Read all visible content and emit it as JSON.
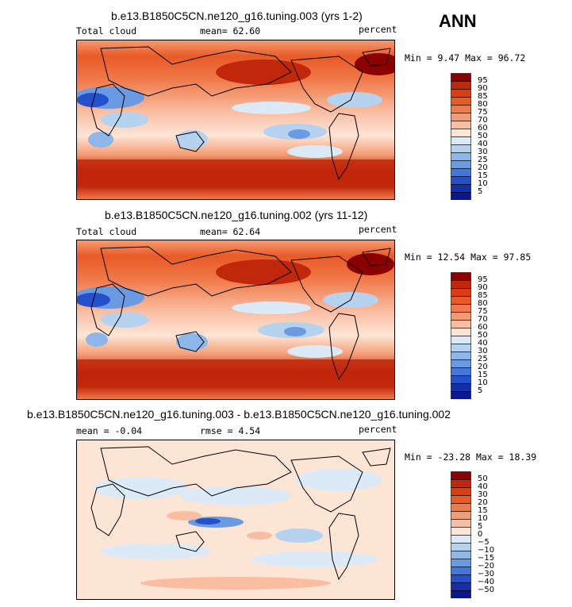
{
  "season_label": "ANN",
  "panels": [
    {
      "title": "b.e13.B1850C5CN.ne120_g16.tuning.003 (yrs 1-2)",
      "variable": "Total cloud",
      "stat1": "mean=  62.60",
      "stat2": "",
      "units": "percent",
      "minmax": "Min =   9.47 Max =  96.72",
      "colorbar": {
        "labels": [
          "95",
          "90",
          "85",
          "80",
          "75",
          "70",
          "60",
          "50",
          "40",
          "30",
          "25",
          "20",
          "15",
          "10",
          "5"
        ],
        "colors": [
          "#8b0000",
          "#c1270b",
          "#db3d10",
          "#e85a26",
          "#f07a4a",
          "#f59b73",
          "#f9bea2",
          "#fde5d6",
          "#dce9f7",
          "#b5d2ef",
          "#8db7e8",
          "#6a9be2",
          "#4576d9",
          "#2550cc",
          "#1430a8",
          "#0a1890"
        ]
      },
      "chart_data": {
        "type": "heatmap",
        "title": "b.e13.B1850C5CN.ne120_g16.tuning.003 (yrs 1-2)",
        "variable": "Total cloud",
        "units": "percent",
        "mean": 62.6,
        "min": 9.47,
        "max": 96.72,
        "levels": [
          5,
          10,
          15,
          20,
          25,
          30,
          40,
          50,
          60,
          70,
          75,
          80,
          85,
          90,
          95
        ]
      }
    },
    {
      "title": "b.e13.B1850C5CN.ne120_g16.tuning.002 (yrs 11-12)",
      "variable": "Total cloud",
      "stat1": "mean=  62.64",
      "stat2": "",
      "units": "percent",
      "minmax": "Min =  12.54 Max =  97.85",
      "colorbar": {
        "labels": [
          "95",
          "90",
          "85",
          "80",
          "75",
          "70",
          "60",
          "50",
          "40",
          "30",
          "25",
          "20",
          "15",
          "10",
          "5"
        ],
        "colors": [
          "#8b0000",
          "#c1270b",
          "#db3d10",
          "#e85a26",
          "#f07a4a",
          "#f59b73",
          "#f9bea2",
          "#fde5d6",
          "#dce9f7",
          "#b5d2ef",
          "#8db7e8",
          "#6a9be2",
          "#4576d9",
          "#2550cc",
          "#1430a8",
          "#0a1890"
        ]
      },
      "chart_data": {
        "type": "heatmap",
        "title": "b.e13.B1850C5CN.ne120_g16.tuning.002 (yrs 11-12)",
        "variable": "Total cloud",
        "units": "percent",
        "mean": 62.64,
        "min": 12.54,
        "max": 97.85,
        "levels": [
          5,
          10,
          15,
          20,
          25,
          30,
          40,
          50,
          60,
          70,
          75,
          80,
          85,
          90,
          95
        ]
      }
    },
    {
      "title": "b.e13.B1850C5CN.ne120_g16.tuning.003 - b.e13.B1850C5CN.ne120_g16.tuning.002",
      "variable": "",
      "stat1": "mean =  -0.04",
      "stat2": "rmse =   4.54",
      "units": "percent",
      "minmax": "Min = -23.28 Max =  18.39",
      "colorbar": {
        "labels": [
          "50",
          "40",
          "30",
          "20",
          "15",
          "10",
          "5",
          "0",
          "−5",
          "−10",
          "−15",
          "−20",
          "−30",
          "−40",
          "−50"
        ],
        "colors": [
          "#8b0000",
          "#c1270b",
          "#db3d10",
          "#e85a26",
          "#f07a4a",
          "#f59b73",
          "#f9bea2",
          "#fde5d6",
          "#dce9f7",
          "#b5d2ef",
          "#8db7e8",
          "#6a9be2",
          "#4576d9",
          "#2550cc",
          "#1430a8",
          "#0a1890"
        ]
      },
      "chart_data": {
        "type": "heatmap",
        "title": "b.e13.B1850C5CN.ne120_g16.tuning.003 - b.e13.B1850C5CN.ne120_g16.tuning.002",
        "units": "percent",
        "mean": -0.04,
        "rmse": 4.54,
        "min": -23.28,
        "max": 18.39,
        "levels": [
          -50,
          -40,
          -30,
          -20,
          -15,
          -10,
          -5,
          0,
          5,
          10,
          15,
          20,
          30,
          40,
          50
        ]
      }
    }
  ]
}
